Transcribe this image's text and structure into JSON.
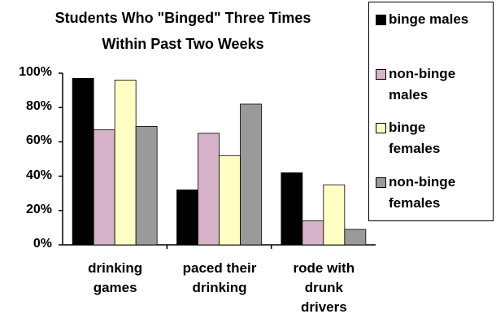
{
  "chart_data": {
    "type": "bar",
    "title": "Students Who \"Binged\" Three Times Within Past Two Weeks",
    "categories": [
      "drinking games",
      "paced their drinking",
      "rode with drunk drivers"
    ],
    "series": [
      {
        "name": "binge males",
        "color": "#000000",
        "values": [
          97,
          32,
          42
        ]
      },
      {
        "name": "non-binge males",
        "color": "#d6b3c8",
        "values": [
          67,
          65,
          14
        ]
      },
      {
        "name": "binge females",
        "color": "#ffffc4",
        "values": [
          96,
          52,
          35
        ]
      },
      {
        "name": "non-binge females",
        "color": "#9a9a9a",
        "values": [
          69,
          82,
          9
        ]
      }
    ],
    "ylim": [
      0,
      100
    ],
    "yticks": [
      {
        "value": 0,
        "label": "0%"
      },
      {
        "value": 20,
        "label": "20%"
      },
      {
        "value": 40,
        "label": "40%"
      },
      {
        "value": 60,
        "label": "60%"
      },
      {
        "value": 80,
        "label": "80%"
      },
      {
        "value": 100,
        "label": "100%"
      }
    ],
    "legend": "right"
  }
}
